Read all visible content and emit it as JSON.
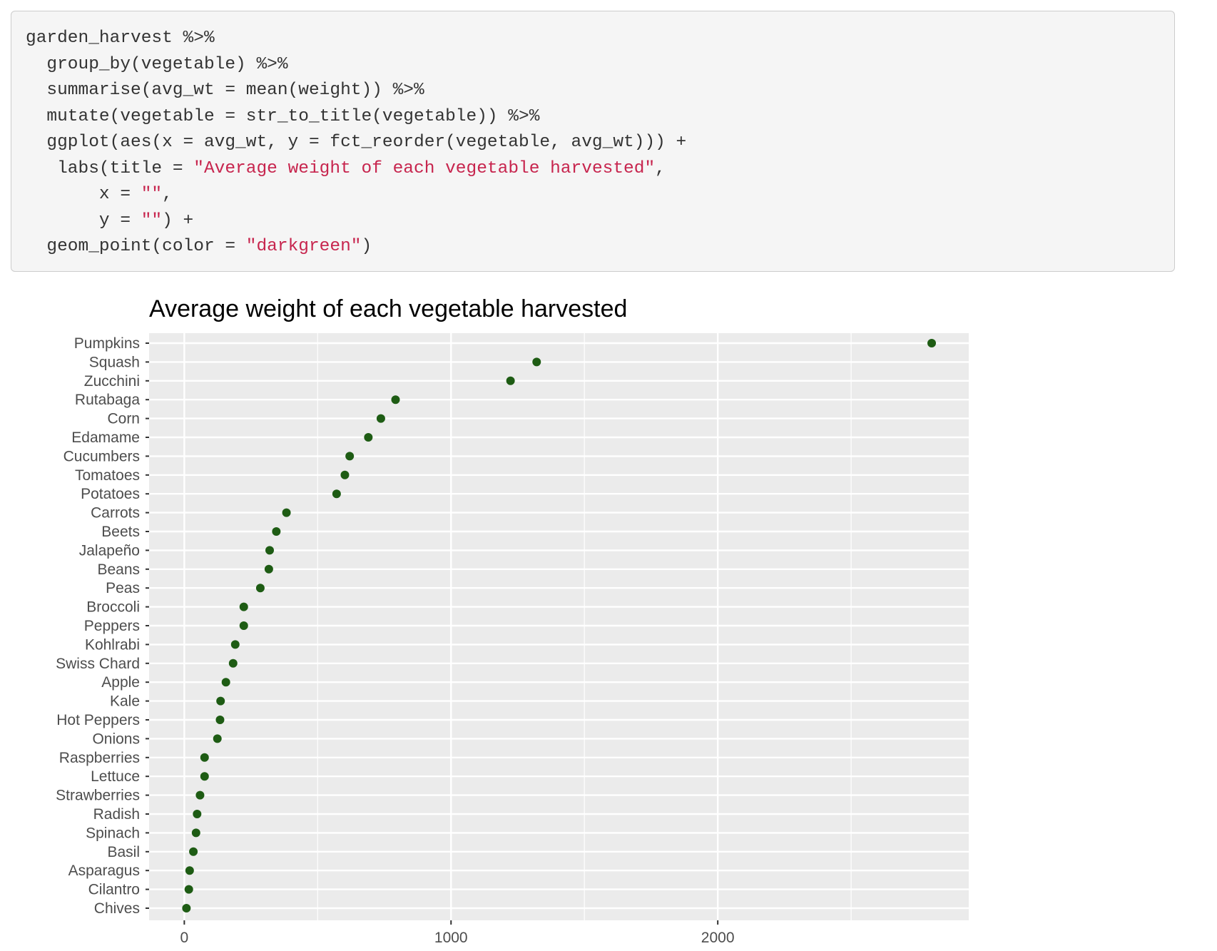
{
  "code": {
    "lines": [
      [
        {
          "t": "garden_harvest %>%"
        }
      ],
      [
        {
          "t": "  group_by(vegetable) %>%"
        }
      ],
      [
        {
          "t": "  summarise(avg_wt = mean(weight)) %>%"
        }
      ],
      [
        {
          "t": "  mutate(vegetable = str_to_title(vegetable)) %>%"
        }
      ],
      [
        {
          "t": "  ggplot(aes(x = avg_wt, y = fct_reorder(vegetable, avg_wt))) +"
        }
      ],
      [
        {
          "t": "   labs(title = "
        },
        {
          "t": "\"Average weight of each vegetable harvested\"",
          "s": true
        },
        {
          "t": ","
        }
      ],
      [
        {
          "t": "       x = "
        },
        {
          "t": "\"\"",
          "s": true
        },
        {
          "t": ","
        }
      ],
      [
        {
          "t": "       y = "
        },
        {
          "t": "\"\"",
          "s": true
        },
        {
          "t": ") +"
        }
      ],
      [
        {
          "t": "  geom_point(color = "
        },
        {
          "t": "\"darkgreen\"",
          "s": true
        },
        {
          "t": ")"
        }
      ]
    ]
  },
  "chart_data": {
    "type": "scatter",
    "title": "Average weight of each vegetable harvested",
    "xlabel": "",
    "ylabel": "",
    "xlim": [
      -132,
      2941
    ],
    "xticks": [
      0,
      1000,
      2000
    ],
    "x_minor_gridlines": [
      500,
      1500,
      2500
    ],
    "grid": true,
    "point_color": "#1e5c14",
    "panel_background": "#ebebeb",
    "categories": [
      "Pumpkins",
      "Squash",
      "Zucchini",
      "Rutabaga",
      "Corn",
      "Edamame",
      "Cucumbers",
      "Tomatoes",
      "Potatoes",
      "Carrots",
      "Beets",
      "Jalapeño",
      "Beans",
      "Peas",
      "Broccoli",
      "Peppers",
      "Kohlrabi",
      "Swiss Chard",
      "Apple",
      "Kale",
      "Hot Peppers",
      "Onions",
      "Raspberries",
      "Lettuce",
      "Strawberries",
      "Radish",
      "Spinach",
      "Basil",
      "Asparagus",
      "Cilantro",
      "Chives"
    ],
    "values": [
      2802,
      1321,
      1223,
      792,
      737,
      690,
      620,
      602,
      571,
      383,
      345,
      320,
      317,
      285,
      223,
      223,
      191,
      183,
      156,
      136,
      134,
      124,
      76,
      76,
      59,
      48,
      44,
      34,
      20,
      17,
      8
    ]
  }
}
